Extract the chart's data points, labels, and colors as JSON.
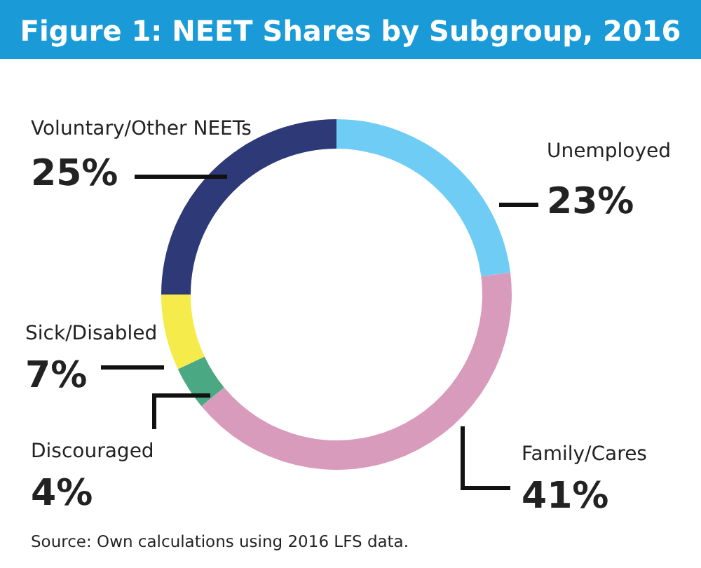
{
  "chart_data": {
    "type": "donut",
    "title": "Figure 1: NEET Shares by Subgroup, 2016",
    "categories": [
      "Unemployed",
      "Family/Cares",
      "Discouraged",
      "Sick/Disabled",
      "Voluntary/Other NEETs"
    ],
    "values": [
      23,
      41,
      4,
      7,
      25
    ],
    "value_labels": [
      "23%",
      "41%",
      "4%",
      "7%",
      "25%"
    ],
    "colors": [
      "#6fcdf5",
      "#d99bbb",
      "#4aa883",
      "#f5ec4c",
      "#2e3a78"
    ],
    "annotations": [
      "Source: Own calculations using 2016 LFS data."
    ]
  }
}
